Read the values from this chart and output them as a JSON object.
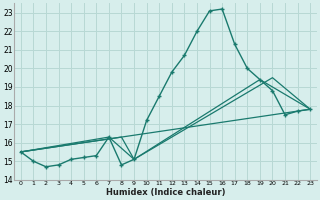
{
  "xlabel": "Humidex (Indice chaleur)",
  "background_color": "#d7eeec",
  "grid_color": "#b8d8d4",
  "line_color": "#1a7a6e",
  "xlim": [
    -0.5,
    23.5
  ],
  "ylim": [
    14,
    23.5
  ],
  "yticks": [
    14,
    15,
    16,
    17,
    18,
    19,
    20,
    21,
    22,
    23
  ],
  "xticks": [
    0,
    1,
    2,
    3,
    4,
    5,
    6,
    7,
    8,
    9,
    10,
    11,
    12,
    13,
    14,
    15,
    16,
    17,
    18,
    19,
    20,
    21,
    22,
    23
  ],
  "series_main_x": [
    0,
    1,
    2,
    3,
    4,
    5,
    6,
    7,
    8,
    9,
    10,
    11,
    12,
    13,
    14,
    15,
    16,
    17,
    18,
    19,
    20,
    21,
    22,
    23
  ],
  "series_main_y": [
    15.5,
    15.0,
    14.7,
    14.8,
    15.1,
    15.2,
    15.3,
    16.3,
    14.8,
    15.1,
    17.2,
    18.5,
    19.8,
    20.7,
    22.0,
    23.1,
    23.2,
    21.3,
    20.0,
    19.4,
    18.8,
    17.5,
    17.7,
    17.8
  ],
  "line1_x": [
    0,
    23
  ],
  "line1_y": [
    15.5,
    17.8
  ],
  "line2_x": [
    0,
    8,
    9,
    19,
    23
  ],
  "line2_y": [
    15.5,
    16.3,
    15.1,
    19.4,
    17.8
  ],
  "line3_x": [
    0,
    7,
    9,
    20,
    23
  ],
  "line3_y": [
    15.5,
    16.3,
    15.1,
    19.5,
    17.8
  ]
}
